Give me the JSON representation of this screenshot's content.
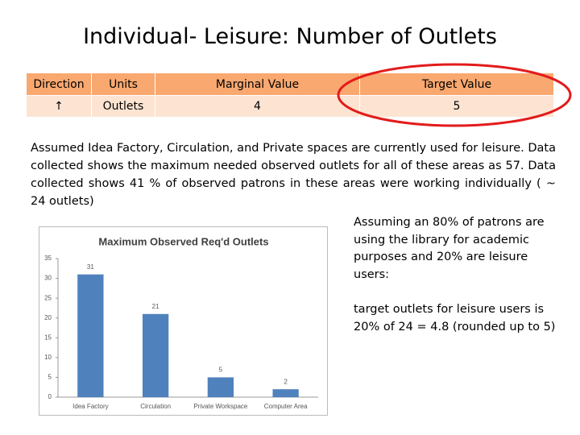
{
  "title": "Individual- Leisure: Number of Outlets",
  "table": {
    "header": [
      "Direction",
      "Units",
      "Marginal  Value",
      "Target Value"
    ],
    "rows": [
      [
        "↑",
        "Outlets",
        4,
        5
      ]
    ]
  },
  "paragraph": "Assumed Idea Factory, Circulation, and Private spaces are currently used for leisure. Data collected shows the maximum needed observed outlets for all of these areas as 57. Data collected shows 41 % of observed patrons in these areas were working individually ( ~ 24 outlets)",
  "notes": [
    "Assuming an 80% of patrons are using the library for academic purposes and 20% are leisure users:",
    "target outlets for leisure users is 20% of 24 = 4.8 (rounded up to 5)"
  ],
  "chart_data": {
    "type": "bar",
    "title": "Maximum Observed Req'd Outlets",
    "categories": [
      "Idea Factory",
      "Circulation",
      "Private Workspace",
      "Computer Area"
    ],
    "values": [
      31,
      21,
      5,
      2
    ],
    "color": "#4f81bd",
    "ylim": [
      0,
      35
    ],
    "yticks": [
      0,
      5,
      10,
      15,
      20,
      25,
      30,
      35
    ],
    "grid": false
  }
}
